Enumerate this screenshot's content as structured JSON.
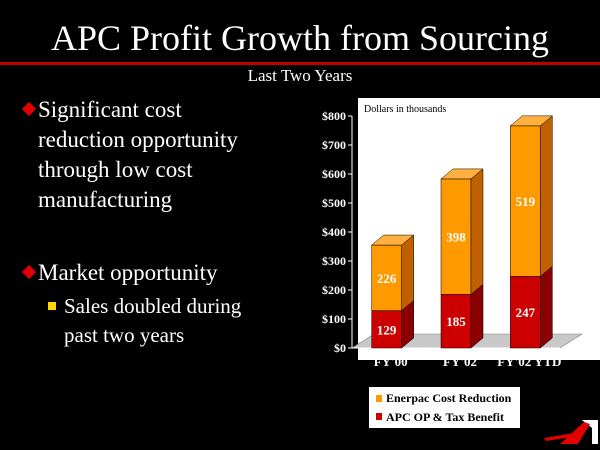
{
  "slide": {
    "title": "APC Profit Growth from Sourcing",
    "subtitle": "Last Two Years",
    "bullets": [
      {
        "text_lines": [
          "Significant cost",
          "reduction opportunity",
          "through low cost",
          "manufacturing"
        ]
      },
      {
        "text_lines": [
          "Market opportunity"
        ],
        "sub": {
          "text_lines": [
            "Sales doubled during",
            "past two years"
          ]
        }
      }
    ]
  },
  "colors": {
    "accent_red": "#c00000",
    "orange": "#ff9900",
    "dark_red": "#cc0000",
    "bullet_yellow": "#ffd400"
  },
  "chart_data": {
    "type": "bar",
    "stacked": true,
    "annotation": "Dollars in thousands",
    "categories": [
      "FY'00",
      "FY'02",
      "FY'02 YTD"
    ],
    "series": [
      {
        "name": "APC OP & Tax Benefit",
        "values": [
          129,
          185,
          247
        ],
        "color": "#cc0000"
      },
      {
        "name": "Enerpac Cost Reduction",
        "values": [
          226,
          398,
          519
        ],
        "color": "#ff9900"
      }
    ],
    "legend_order": [
      "Enerpac Cost Reduction",
      "APC OP & Tax Benefit"
    ],
    "y_ticks": [
      "$0",
      "$100",
      "$200",
      "$300",
      "$400",
      "$500",
      "$600",
      "$700",
      "$800"
    ],
    "ylim": [
      0,
      800
    ],
    "legend_position": "bottom",
    "three_d": true
  }
}
